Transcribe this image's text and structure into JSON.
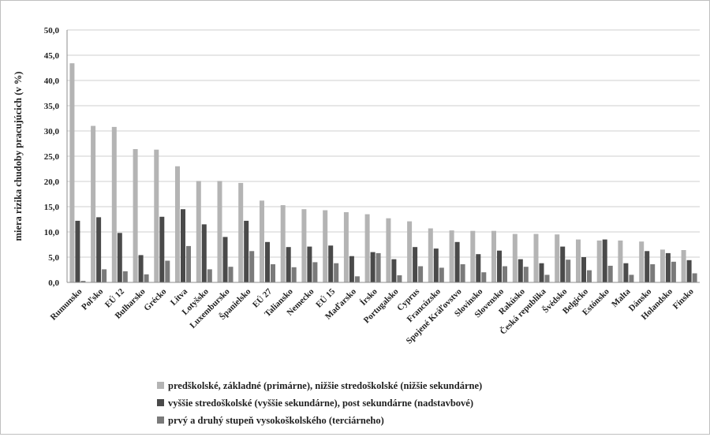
{
  "chart_data": {
    "type": "bar",
    "title": "",
    "xlabel": "",
    "ylabel": "miera rizika chudoby pracujúcich (v %)",
    "ylim": [
      0,
      50
    ],
    "yticks": [
      "0,0",
      "5,0",
      "10,0",
      "15,0",
      "20,0",
      "25,0",
      "30,0",
      "35,0",
      "40,0",
      "45,0",
      "50,0"
    ],
    "grid": "horizontal",
    "legend_position": "bottom",
    "categories": [
      "Rumunsko",
      "Poľsko",
      "EÚ 12",
      "Bulharsko",
      "Grécko",
      "Litva",
      "Lotyšsko",
      "Luxembursko",
      "Španielsko",
      "EÚ 27",
      "Taliansko",
      "Nemecko",
      "EÚ 15",
      "Maďarsko",
      "Írsko",
      "Portugalsko",
      "Cyprus",
      "Francúzsko",
      "Spojené Kráľovstvo",
      "Slovinsko",
      "Slovensko",
      "Rakúsko",
      "Česká republika",
      "Švédsko",
      "Belgicko",
      "Estónsko",
      "Malta",
      "Dánsko",
      "Holandsko",
      "Fínsko"
    ],
    "series": [
      {
        "name": "predškolské, základné (primárne), nižšie stredoškolské (nižšie sekundárne)",
        "color": "#b4b4b4",
        "values": [
          43.4,
          31.0,
          30.8,
          26.4,
          26.3,
          23.0,
          20.1,
          20.1,
          19.7,
          16.2,
          15.3,
          14.5,
          14.3,
          13.9,
          13.5,
          12.7,
          12.1,
          10.7,
          10.3,
          10.2,
          10.2,
          9.6,
          9.6,
          9.5,
          8.5,
          8.3,
          8.3,
          8.1,
          6.5,
          6.4
        ]
      },
      {
        "name": "vyššie stredoškolské (vyššie sekundárne), post sekundárne (nadstavbové)",
        "color": "#4a4a4a",
        "values": [
          12.2,
          12.9,
          9.8,
          5.4,
          13.0,
          14.5,
          11.5,
          9.0,
          12.2,
          8.0,
          7.0,
          7.1,
          7.3,
          5.2,
          6.0,
          4.6,
          7.0,
          6.7,
          8.0,
          5.6,
          6.3,
          4.6,
          3.8,
          7.1,
          5.0,
          8.5,
          3.8,
          6.2,
          5.8,
          4.4
        ]
      },
      {
        "name": "prvý a druhý stupeň vysokoškolského (terciárneho)",
        "color": "#7a7a7a",
        "values": [
          0.3,
          2.6,
          2.2,
          1.6,
          4.3,
          7.2,
          2.6,
          3.1,
          6.2,
          3.6,
          3.0,
          4.0,
          3.8,
          1.2,
          5.8,
          1.4,
          3.2,
          2.9,
          3.6,
          2.0,
          3.2,
          3.1,
          1.5,
          4.5,
          2.4,
          3.3,
          1.5,
          3.6,
          4.1,
          1.8
        ]
      }
    ]
  }
}
